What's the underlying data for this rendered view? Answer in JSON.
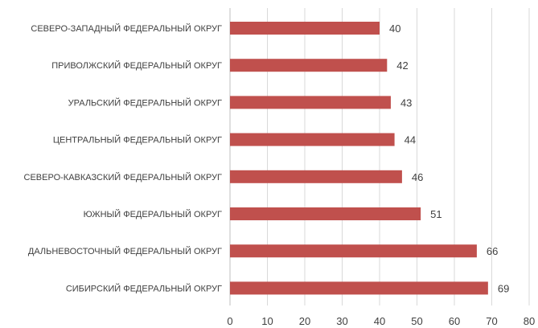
{
  "chart_data": {
    "type": "bar",
    "orientation": "horizontal",
    "title": "",
    "xlabel": "",
    "ylabel": "",
    "categories": [
      "СЕВЕРО-ЗАПАДНЫЙ ФЕДЕРАЛЬНЫЙ ОКРУГ",
      "ПРИВОЛЖСКИЙ ФЕДЕРАЛЬНЫЙ ОКРУГ",
      "УРАЛЬСКИЙ ФЕДЕРАЛЬНЫЙ ОКРУГ",
      "ЦЕНТРАЛЬНЫЙ ФЕДЕРАЛЬНЫЙ ОКРУГ",
      "СЕВЕРО-КАВКАЗСКИЙ ФЕДЕРАЛЬНЫЙ ОКРУГ",
      "ЮЖНЫЙ ФЕДЕРАЛЬНЫЙ ОКРУГ",
      "ДАЛЬНЕВОСТОЧНЫЙ ФЕДЕРАЛЬНЫЙ ОКРУГ",
      "СИБИРСКИЙ ФЕДЕРАЛЬНЫЙ ОКРУГ"
    ],
    "values": [
      40,
      42,
      43,
      44,
      46,
      51,
      66,
      69
    ],
    "xlim": [
      0,
      80
    ],
    "xticks": [
      0,
      10,
      20,
      30,
      40,
      50,
      60,
      70,
      80
    ],
    "grid": true,
    "legend": "none",
    "bar_color": "#c0504d"
  }
}
